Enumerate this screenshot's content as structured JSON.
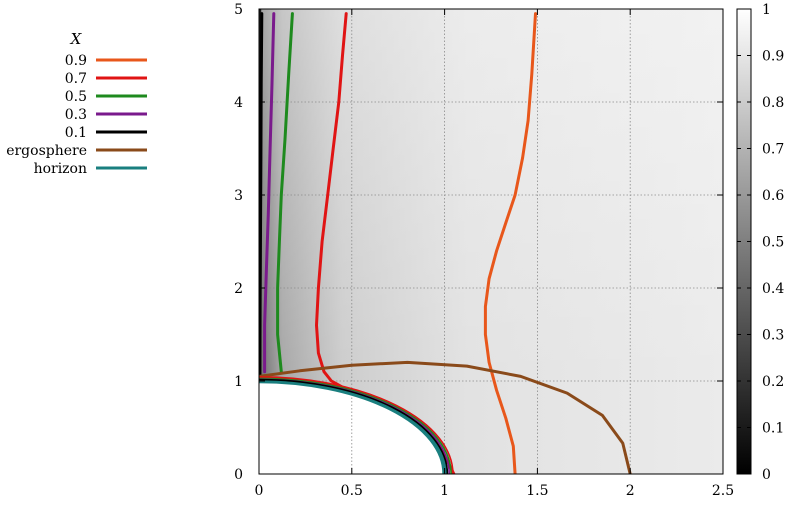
{
  "chart_data": {
    "type": "line",
    "title": "",
    "xlabel": "",
    "ylabel": "",
    "xlim": [
      0,
      2.5
    ],
    "ylim": [
      0,
      5
    ],
    "x_ticks": [
      "0",
      "0.5",
      "1",
      "1.5",
      "2",
      "2.5"
    ],
    "y_ticks": [
      "0",
      "1",
      "2",
      "3",
      "4",
      "5"
    ],
    "grid": true,
    "background": "grayscale density map of X (0 = black, 1 = white), mostly light gray",
    "legend": {
      "title": "X",
      "placement": "top-left outside plot",
      "entries": [
        {
          "label": "0.9",
          "color": "#e8571b"
        },
        {
          "label": "0.7",
          "color": "#e01414"
        },
        {
          "label": "0.5",
          "color": "#1e8a1e"
        },
        {
          "label": "0.3",
          "color": "#7a1a8c"
        },
        {
          "label": "0.1",
          "color": "#000000"
        },
        {
          "label": "ergosphere",
          "color": "#8a4a1a"
        },
        {
          "label": "horizon",
          "color": "#1a7f7f"
        }
      ]
    },
    "colorbar": {
      "range": [
        0,
        1
      ],
      "ticks": [
        "0",
        "0.1",
        "0.2",
        "0.3",
        "0.4",
        "0.5",
        "0.6",
        "0.7",
        "0.8",
        "0.9",
        "1"
      ]
    },
    "series": [
      {
        "name": "0.9",
        "color": "#e8571b",
        "x": [
          1.38,
          1.37,
          1.33,
          1.28,
          1.24,
          1.22,
          1.22,
          1.24,
          1.28,
          1.33,
          1.38,
          1.42,
          1.45,
          1.47,
          1.49
        ],
        "y": [
          0.0,
          0.3,
          0.6,
          0.9,
          1.2,
          1.5,
          1.8,
          2.1,
          2.4,
          2.7,
          3.0,
          3.4,
          3.8,
          4.3,
          4.95
        ]
      },
      {
        "name": "0.7",
        "color": "#e01414",
        "x": [
          1.05,
          1.0,
          0.95,
          0.88,
          0.78,
          0.62,
          0.48,
          0.39,
          0.35,
          0.32,
          0.31,
          0.32,
          0.34,
          0.37,
          0.4,
          0.43,
          0.45,
          0.47
        ],
        "y": [
          0.0,
          0.2,
          0.35,
          0.5,
          0.65,
          0.8,
          0.9,
          1.0,
          1.1,
          1.3,
          1.6,
          2.0,
          2.5,
          3.0,
          3.5,
          4.0,
          4.5,
          4.95
        ]
      },
      {
        "name": "0.5",
        "color": "#1e8a1e",
        "x": [
          0.12,
          0.1,
          0.1,
          0.11,
          0.12,
          0.14,
          0.16,
          0.18
        ],
        "y": [
          1.1,
          1.5,
          2.0,
          2.5,
          3.0,
          3.6,
          4.3,
          4.95
        ]
      },
      {
        "name": "0.3",
        "color": "#7a1a8c",
        "x": [
          0.03,
          0.03,
          0.04,
          0.05,
          0.06,
          0.07,
          0.08
        ],
        "y": [
          1.1,
          1.6,
          2.2,
          2.8,
          3.5,
          4.2,
          4.95
        ]
      },
      {
        "name": "0.1",
        "color": "#000000",
        "x": [
          0.005,
          0.006,
          0.008,
          0.01,
          0.012,
          0.015
        ],
        "y": [
          1.05,
          1.8,
          2.6,
          3.4,
          4.2,
          4.95
        ]
      },
      {
        "name": "ergosphere",
        "color": "#8a4a1a",
        "shape": "quarter ellipse",
        "x": [
          2.0,
          1.96,
          1.85,
          1.66,
          1.41,
          1.12,
          0.8,
          0.5,
          0.22,
          0.0
        ],
        "y": [
          0.0,
          0.33,
          0.63,
          0.87,
          1.05,
          1.16,
          1.2,
          1.17,
          1.11,
          1.05
        ]
      },
      {
        "name": "horizon",
        "color": "#1a7f7f",
        "shape": "quarter circle of radius 1",
        "x": [
          1.0,
          0.985,
          0.94,
          0.87,
          0.77,
          0.64,
          0.5,
          0.34,
          0.17,
          0.0
        ],
        "y": [
          0.0,
          0.17,
          0.34,
          0.5,
          0.64,
          0.77,
          0.87,
          0.94,
          0.985,
          1.0
        ]
      }
    ]
  }
}
